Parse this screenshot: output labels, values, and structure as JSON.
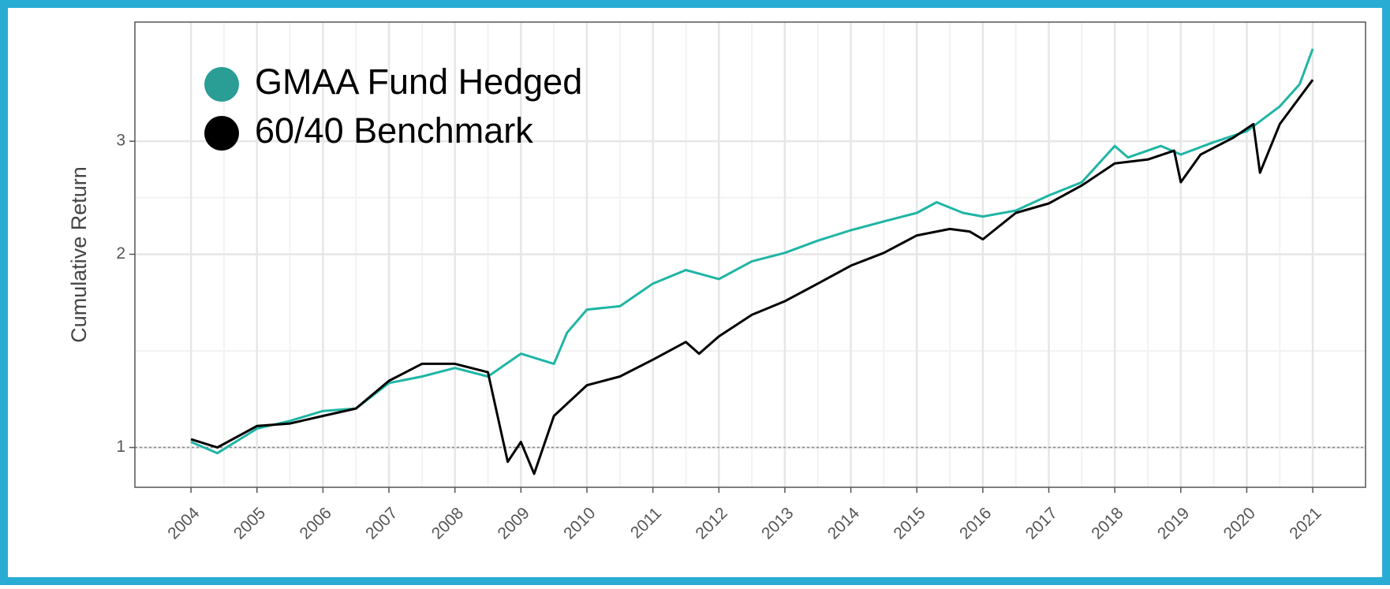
{
  "chart_data": {
    "type": "line",
    "y_label": "Cumulative Return",
    "log_scale_y": true,
    "grid": true,
    "legend_position": "upper-left",
    "reference_line": 1,
    "xlim": [
      2003.15,
      2021.8
    ],
    "xticks": [
      2004,
      2005,
      2006,
      2007,
      2008,
      2009,
      2010,
      2011,
      2012,
      2013,
      2014,
      2015,
      2016,
      2017,
      2018,
      2019,
      2020,
      2021
    ],
    "ylim": [
      0.867,
      4.6
    ],
    "yticks": [
      1,
      2,
      3
    ],
    "series": [
      {
        "name": "GMAA Fund Hedged",
        "color": "#1fb5a5",
        "legend_color": "#2a9d94",
        "x": [
          2004.0,
          2004.4,
          2005.0,
          2005.5,
          2006.0,
          2006.5,
          2007.0,
          2007.5,
          2008.0,
          2008.5,
          2009.0,
          2009.5,
          2009.7,
          2010.0,
          2010.5,
          2011.0,
          2011.5,
          2012.0,
          2012.5,
          2013.0,
          2013.5,
          2014.0,
          2014.5,
          2015.0,
          2015.3,
          2015.7,
          2016.0,
          2016.5,
          2017.0,
          2017.5,
          2018.0,
          2018.2,
          2018.7,
          2019.0,
          2019.5,
          2020.0,
          2020.5,
          2020.8,
          2021.0
        ],
        "values": [
          1.02,
          0.98,
          1.07,
          1.1,
          1.14,
          1.15,
          1.26,
          1.29,
          1.33,
          1.29,
          1.4,
          1.35,
          1.51,
          1.64,
          1.66,
          1.8,
          1.89,
          1.83,
          1.95,
          2.01,
          2.1,
          2.18,
          2.25,
          2.32,
          2.41,
          2.32,
          2.29,
          2.34,
          2.47,
          2.59,
          2.95,
          2.83,
          2.95,
          2.86,
          2.99,
          3.11,
          3.4,
          3.68,
          4.18
        ]
      },
      {
        "name": "60/40 Benchmark",
        "color": "#000000",
        "legend_color": "#000000",
        "x": [
          2004.0,
          2004.4,
          2005.0,
          2005.5,
          2006.0,
          2006.5,
          2007.0,
          2007.5,
          2008.0,
          2008.5,
          2008.8,
          2009.0,
          2009.2,
          2009.5,
          2010.0,
          2010.5,
          2011.0,
          2011.5,
          2011.7,
          2012.0,
          2012.5,
          2013.0,
          2013.5,
          2014.0,
          2014.5,
          2015.0,
          2015.5,
          2015.8,
          2016.0,
          2016.5,
          2017.0,
          2017.5,
          2018.0,
          2018.5,
          2018.9,
          2019.0,
          2019.3,
          2019.8,
          2020.1,
          2020.2,
          2020.5,
          2020.8,
          2021.0
        ],
        "values": [
          1.03,
          1.0,
          1.08,
          1.09,
          1.12,
          1.15,
          1.27,
          1.35,
          1.35,
          1.31,
          0.95,
          1.02,
          0.91,
          1.12,
          1.25,
          1.29,
          1.37,
          1.46,
          1.4,
          1.49,
          1.61,
          1.69,
          1.8,
          1.92,
          2.01,
          2.14,
          2.19,
          2.17,
          2.11,
          2.32,
          2.4,
          2.56,
          2.77,
          2.81,
          2.9,
          2.59,
          2.86,
          3.04,
          3.19,
          2.68,
          3.19,
          3.51,
          3.74
        ]
      }
    ]
  }
}
